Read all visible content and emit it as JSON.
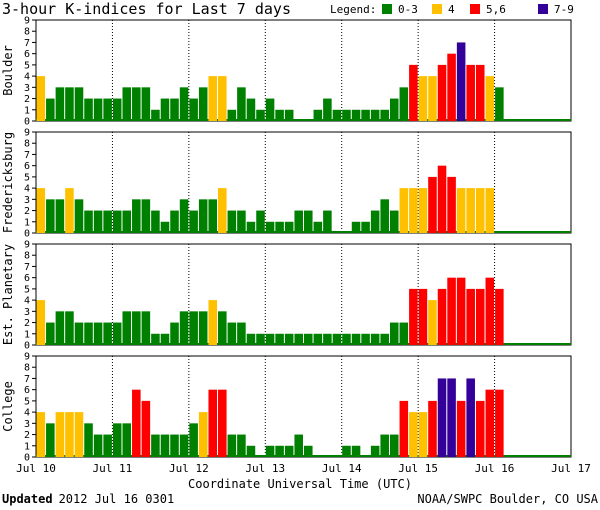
{
  "title": "3-hour K-indices for Last 7 days",
  "legend": {
    "title": "Legend:",
    "items": [
      {
        "label": "0-3",
        "color": "#008000"
      },
      {
        "label": "4",
        "color": "#ffc000"
      },
      {
        "label": "5,6",
        "color": "#ff0000"
      },
      {
        "label": "7-9",
        "color": "#330099"
      }
    ]
  },
  "x_axis_label": "Coordinate Universal Time (UTC)",
  "footer": {
    "updated_bold": "Updated",
    "updated_text": "2012 Jul 16 0301",
    "source": "NOAA/SWPC Boulder, CO USA"
  },
  "chart_data": {
    "type": "bar",
    "x_ticks": [
      "Jul 10",
      "Jul 11",
      "Jul 12",
      "Jul 13",
      "Jul 14",
      "Jul 15",
      "Jul 16",
      "Jul 17"
    ],
    "y_ticks": [
      0,
      1,
      2,
      3,
      4,
      5,
      6,
      7,
      8,
      9
    ],
    "ylim": [
      0,
      9
    ],
    "bars_per_day": 8,
    "days": 7,
    "panels": [
      {
        "name": "Boulder",
        "values": [
          4,
          2,
          3,
          3,
          3,
          2,
          2,
          2,
          2,
          3,
          3,
          3,
          1,
          2,
          2,
          3,
          2,
          3,
          4,
          4,
          1,
          3,
          2,
          1,
          2,
          1,
          1,
          0,
          0,
          1,
          2,
          1,
          1,
          1,
          1,
          1,
          1,
          2,
          3,
          5,
          4,
          4,
          5,
          6,
          7,
          5,
          5,
          4,
          3
        ]
      },
      {
        "name": "Fredericksburg",
        "values": [
          4,
          3,
          3,
          4,
          3,
          2,
          2,
          2,
          2,
          2,
          3,
          3,
          2,
          1,
          2,
          3,
          2,
          3,
          3,
          4,
          2,
          2,
          1,
          2,
          1,
          1,
          1,
          2,
          2,
          1,
          2,
          0,
          0,
          1,
          1,
          2,
          3,
          2,
          4,
          4,
          4,
          5,
          6,
          5,
          4,
          4,
          4,
          4
        ]
      },
      {
        "name": "Est. Planetary",
        "values": [
          4,
          2,
          3,
          3,
          2,
          2,
          2,
          2,
          2,
          3,
          3,
          3,
          1,
          1,
          2,
          3,
          3,
          3,
          4,
          3,
          2,
          2,
          1,
          1,
          1,
          1,
          1,
          1,
          1,
          1,
          1,
          1,
          1,
          1,
          1,
          1,
          1,
          2,
          2,
          5,
          5,
          4,
          5,
          6,
          6,
          5,
          5,
          6,
          5
        ]
      },
      {
        "name": "College",
        "values": [
          4,
          3,
          4,
          4,
          4,
          3,
          2,
          2,
          3,
          3,
          6,
          5,
          2,
          2,
          2,
          2,
          3,
          4,
          6,
          6,
          2,
          2,
          1,
          0,
          1,
          1,
          1,
          2,
          1,
          0,
          0,
          0,
          1,
          1,
          0,
          1,
          2,
          2,
          5,
          4,
          4,
          5,
          7,
          7,
          5,
          7,
          5,
          6,
          6
        ]
      }
    ]
  }
}
